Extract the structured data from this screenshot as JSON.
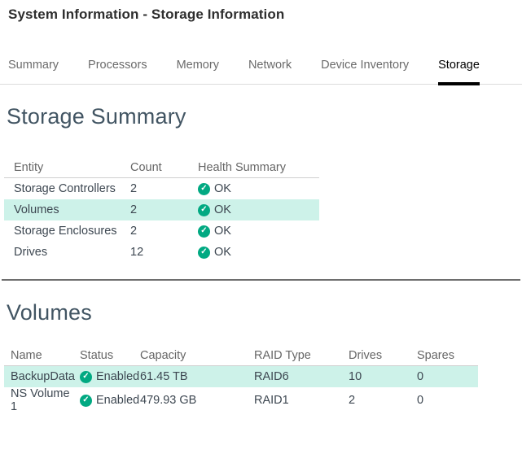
{
  "page": {
    "title": "System Information - Storage Information"
  },
  "tabs": [
    {
      "label": "Summary",
      "active": false
    },
    {
      "label": "Processors",
      "active": false
    },
    {
      "label": "Memory",
      "active": false
    },
    {
      "label": "Network",
      "active": false
    },
    {
      "label": "Device Inventory",
      "active": false
    },
    {
      "label": "Storage",
      "active": true
    }
  ],
  "storage_summary": {
    "heading": "Storage Summary",
    "columns": {
      "entity": "Entity",
      "count": "Count",
      "health": "Health Summary"
    },
    "rows": [
      {
        "entity": "Storage Controllers",
        "count": "2",
        "health": "OK",
        "highlighted": false
      },
      {
        "entity": "Volumes",
        "count": "2",
        "health": "OK",
        "highlighted": true
      },
      {
        "entity": "Storage Enclosures",
        "count": "2",
        "health": "OK",
        "highlighted": false
      },
      {
        "entity": "Drives",
        "count": "12",
        "health": "OK",
        "highlighted": false
      }
    ]
  },
  "volumes": {
    "heading": "Volumes",
    "columns": {
      "name": "Name",
      "status": "Status",
      "capacity": "Capacity",
      "raid": "RAID Type",
      "drives": "Drives",
      "spares": "Spares"
    },
    "rows": [
      {
        "name": "BackupData",
        "status": "Enabled",
        "capacity": "61.45 TB",
        "raid": "RAID6",
        "drives": "10",
        "spares": "0",
        "highlighted": true
      },
      {
        "name": "NS Volume 1",
        "status": "Enabled",
        "capacity": "479.93 GB",
        "raid": "RAID1",
        "drives": "2",
        "spares": "0",
        "highlighted": false
      }
    ]
  },
  "icons": {
    "health_ok": "✓",
    "status_enabled": "✓"
  },
  "colors": {
    "accent_green": "#01a982",
    "row_highlight": "#cdf2e9",
    "active_tab_underline": "#000000",
    "section_divider": "#6e6e6e"
  }
}
